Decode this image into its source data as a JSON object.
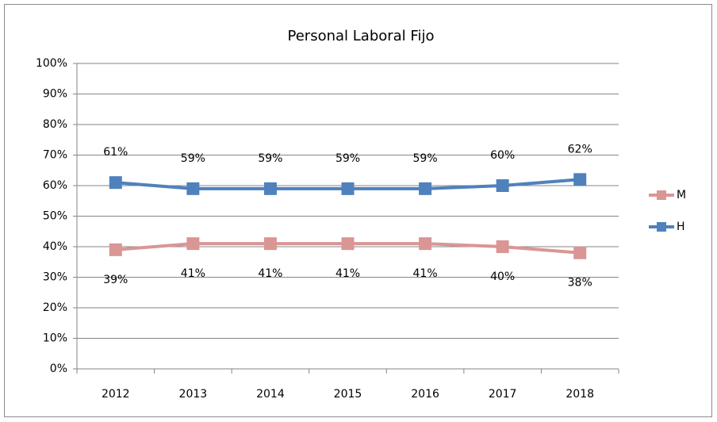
{
  "chart_data": {
    "type": "line",
    "title": "Personal Laboral Fijo",
    "categories": [
      "2012",
      "2013",
      "2014",
      "2015",
      "2016",
      "2017",
      "2018"
    ],
    "series": [
      {
        "name": "M",
        "color": "#d99694",
        "values": [
          39,
          41,
          41,
          41,
          41,
          40,
          38
        ],
        "value_labels": [
          "39%",
          "41%",
          "41%",
          "41%",
          "41%",
          "40%",
          "38%"
        ]
      },
      {
        "name": "H",
        "color": "#4f81bd",
        "values": [
          61,
          59,
          59,
          59,
          59,
          60,
          62
        ],
        "value_labels": [
          "61%",
          "59%",
          "59%",
          "59%",
          "59%",
          "60%",
          "62%"
        ]
      }
    ],
    "ylim": [
      0,
      100
    ],
    "yticks": [
      {
        "value": 0,
        "label": "0%"
      },
      {
        "value": 10,
        "label": "10%"
      },
      {
        "value": 20,
        "label": "20%"
      },
      {
        "value": 30,
        "label": "30%"
      },
      {
        "value": 40,
        "label": "40%"
      },
      {
        "value": 50,
        "label": "50%"
      },
      {
        "value": 60,
        "label": "60%"
      },
      {
        "value": 70,
        "label": "70%"
      },
      {
        "value": 80,
        "label": "80%"
      },
      {
        "value": 90,
        "label": "90%"
      },
      {
        "value": 100,
        "label": "100%"
      }
    ],
    "grid": true,
    "legend": "right"
  }
}
